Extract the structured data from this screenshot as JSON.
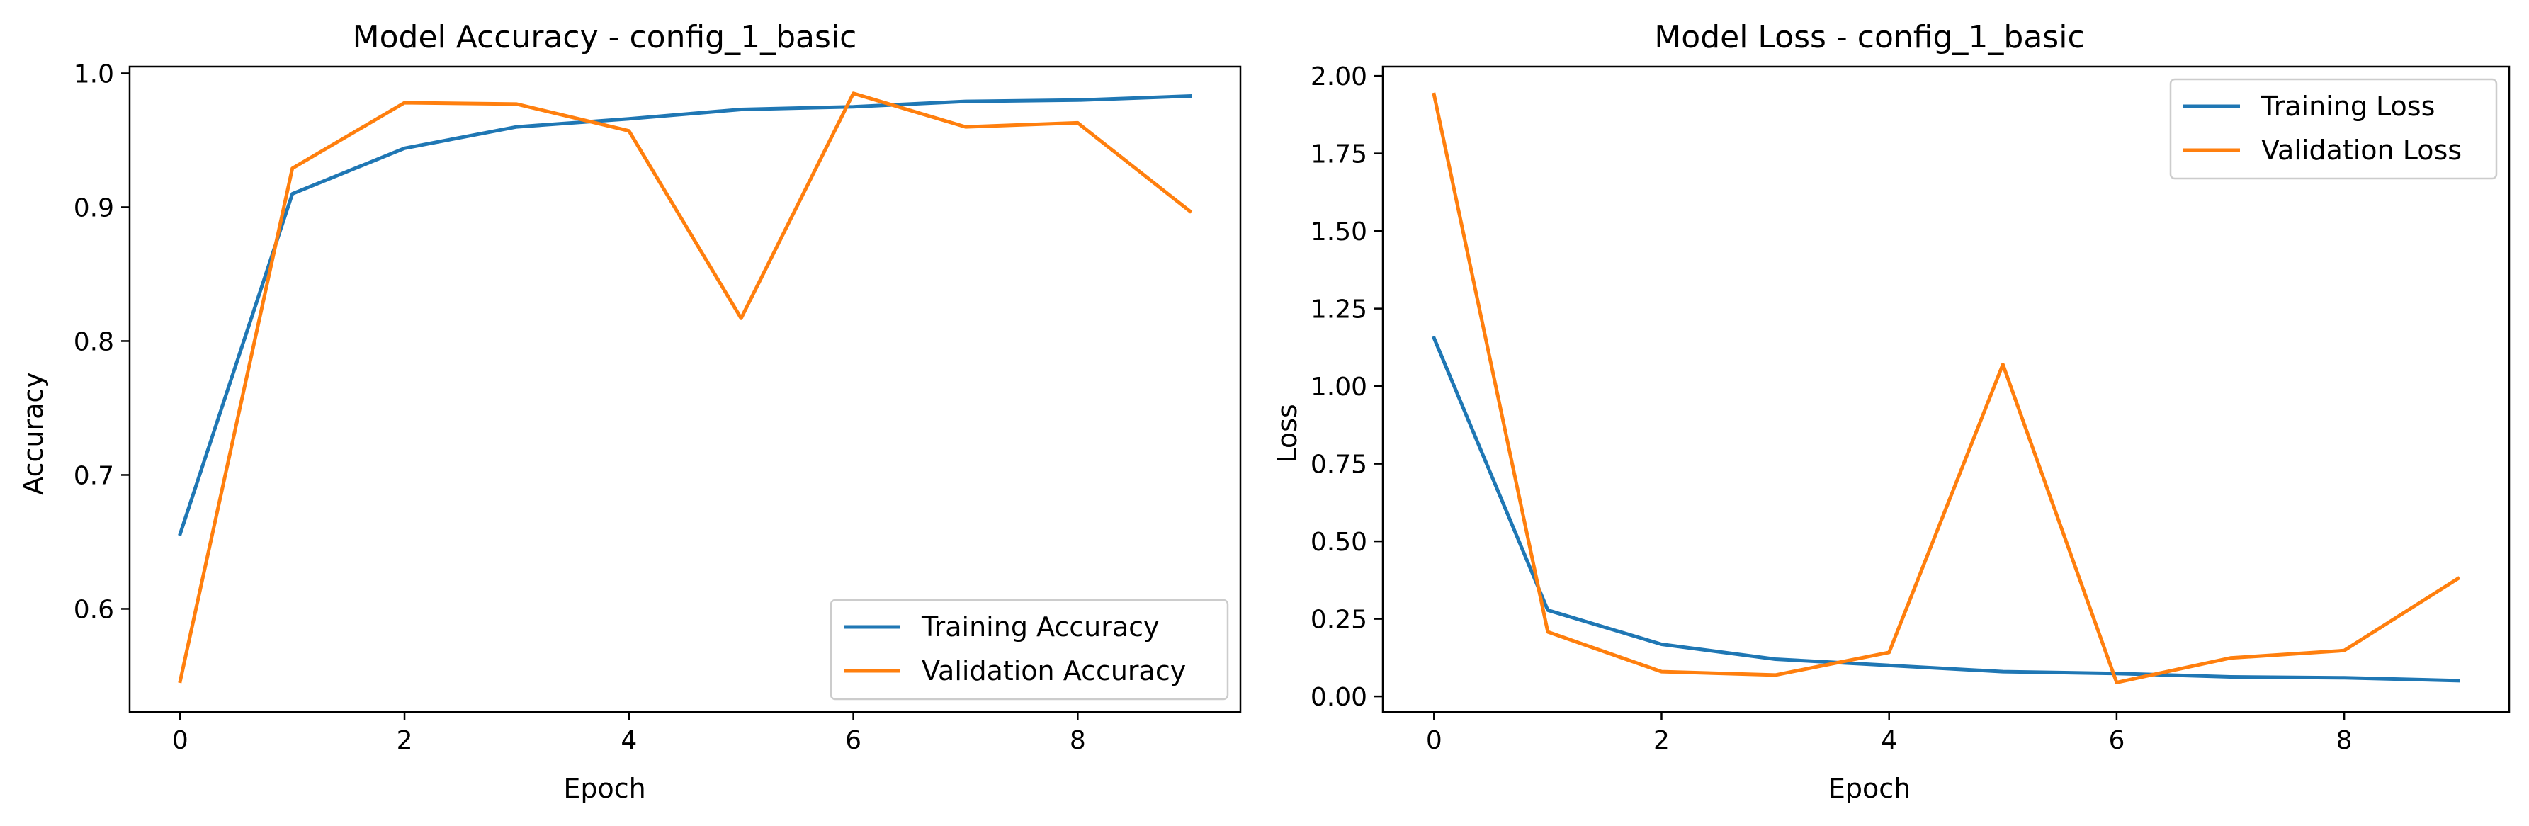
{
  "chart_data": [
    {
      "type": "line",
      "title": "Model Accuracy - config_1_basic",
      "xlabel": "Epoch",
      "ylabel": "Accuracy",
      "xlim": [
        -0.45,
        9.45
      ],
      "ylim": [
        0.523,
        1.005
      ],
      "xticks": [
        0,
        2,
        4,
        6,
        8
      ],
      "xtick_labels": [
        "0",
        "2",
        "4",
        "6",
        "8"
      ],
      "yticks": [
        0.6,
        0.7,
        0.8,
        0.9,
        1.0
      ],
      "ytick_labels": [
        "0.6",
        "0.7",
        "0.8",
        "0.9",
        "1.0"
      ],
      "grid": false,
      "legend_position": "lower-right",
      "x": [
        0,
        1,
        2,
        3,
        4,
        5,
        6,
        7,
        8,
        9
      ],
      "series": [
        {
          "name": "Training Accuracy",
          "color": "#1f77b4",
          "values": [
            0.656,
            0.91,
            0.944,
            0.96,
            0.966,
            0.973,
            0.975,
            0.979,
            0.98,
            0.983
          ]
        },
        {
          "name": "Validation Accuracy",
          "color": "#ff7f0e",
          "values": [
            0.546,
            0.929,
            0.978,
            0.977,
            0.957,
            0.817,
            0.985,
            0.96,
            0.963,
            0.897
          ]
        }
      ]
    },
    {
      "type": "line",
      "title": "Model Loss - config_1_basic",
      "xlabel": "Epoch",
      "ylabel": "Loss",
      "xlim": [
        -0.45,
        9.45
      ],
      "ylim": [
        -0.05,
        2.03
      ],
      "xticks": [
        0,
        2,
        4,
        6,
        8
      ],
      "xtick_labels": [
        "0",
        "2",
        "4",
        "6",
        "8"
      ],
      "yticks": [
        0,
        0.25,
        0.5,
        0.75,
        1.0,
        1.25,
        1.5,
        1.75,
        2.0
      ],
      "ytick_labels": [
        "0.00",
        "0.25",
        "0.50",
        "0.75",
        "1.00",
        "1.25",
        "1.50",
        "1.75",
        "2.00"
      ],
      "grid": false,
      "legend_position": "upper-right",
      "x": [
        0,
        1,
        2,
        3,
        4,
        5,
        6,
        7,
        8,
        9
      ],
      "series": [
        {
          "name": "Training Loss",
          "color": "#1f77b4",
          "values": [
            1.155,
            0.278,
            0.168,
            0.12,
            0.1,
            0.08,
            0.074,
            0.063,
            0.06,
            0.051
          ]
        },
        {
          "name": "Validation Loss",
          "color": "#ff7f0e",
          "values": [
            1.94,
            0.208,
            0.08,
            0.069,
            0.142,
            1.07,
            0.045,
            0.124,
            0.148,
            0.38
          ]
        }
      ]
    }
  ]
}
